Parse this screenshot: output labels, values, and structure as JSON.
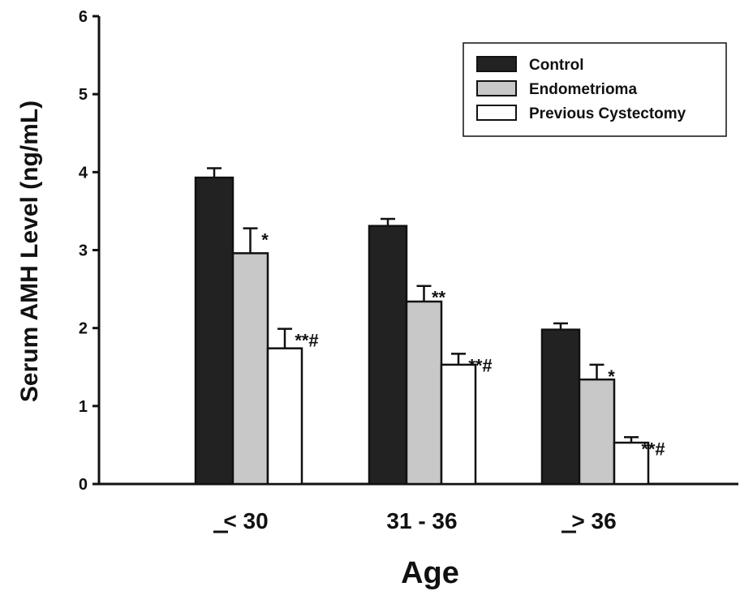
{
  "chart_data": {
    "type": "bar",
    "xlabel": "Age",
    "ylabel": "Serum AMH Level (ng/mL)",
    "ylim": [
      0,
      6
    ],
    "yticks": [
      0,
      1,
      2,
      3,
      4,
      5,
      6
    ],
    "categories": [
      "< 30",
      "31 - 36",
      "> 36"
    ],
    "category_underline": [
      true,
      false,
      true
    ],
    "legend_position": "top-right",
    "series": [
      {
        "name": "Control",
        "color": "#222222",
        "values": [
          3.93,
          3.31,
          1.98
        ],
        "errors": [
          0.12,
          0.09,
          0.08
        ],
        "annotations": [
          "",
          "",
          ""
        ]
      },
      {
        "name": "Endometrioma",
        "color": "#c8c8c8",
        "values": [
          2.96,
          2.34,
          1.34
        ],
        "errors": [
          0.32,
          0.2,
          0.19
        ],
        "annotations": [
          "*",
          "**",
          "*"
        ]
      },
      {
        "name": "Previous Cystectomy",
        "color": "#ffffff",
        "values": [
          1.74,
          1.53,
          0.53
        ],
        "errors": [
          0.25,
          0.14,
          0.07
        ],
        "annotations": [
          "**#",
          "**#",
          "**#"
        ]
      }
    ]
  }
}
